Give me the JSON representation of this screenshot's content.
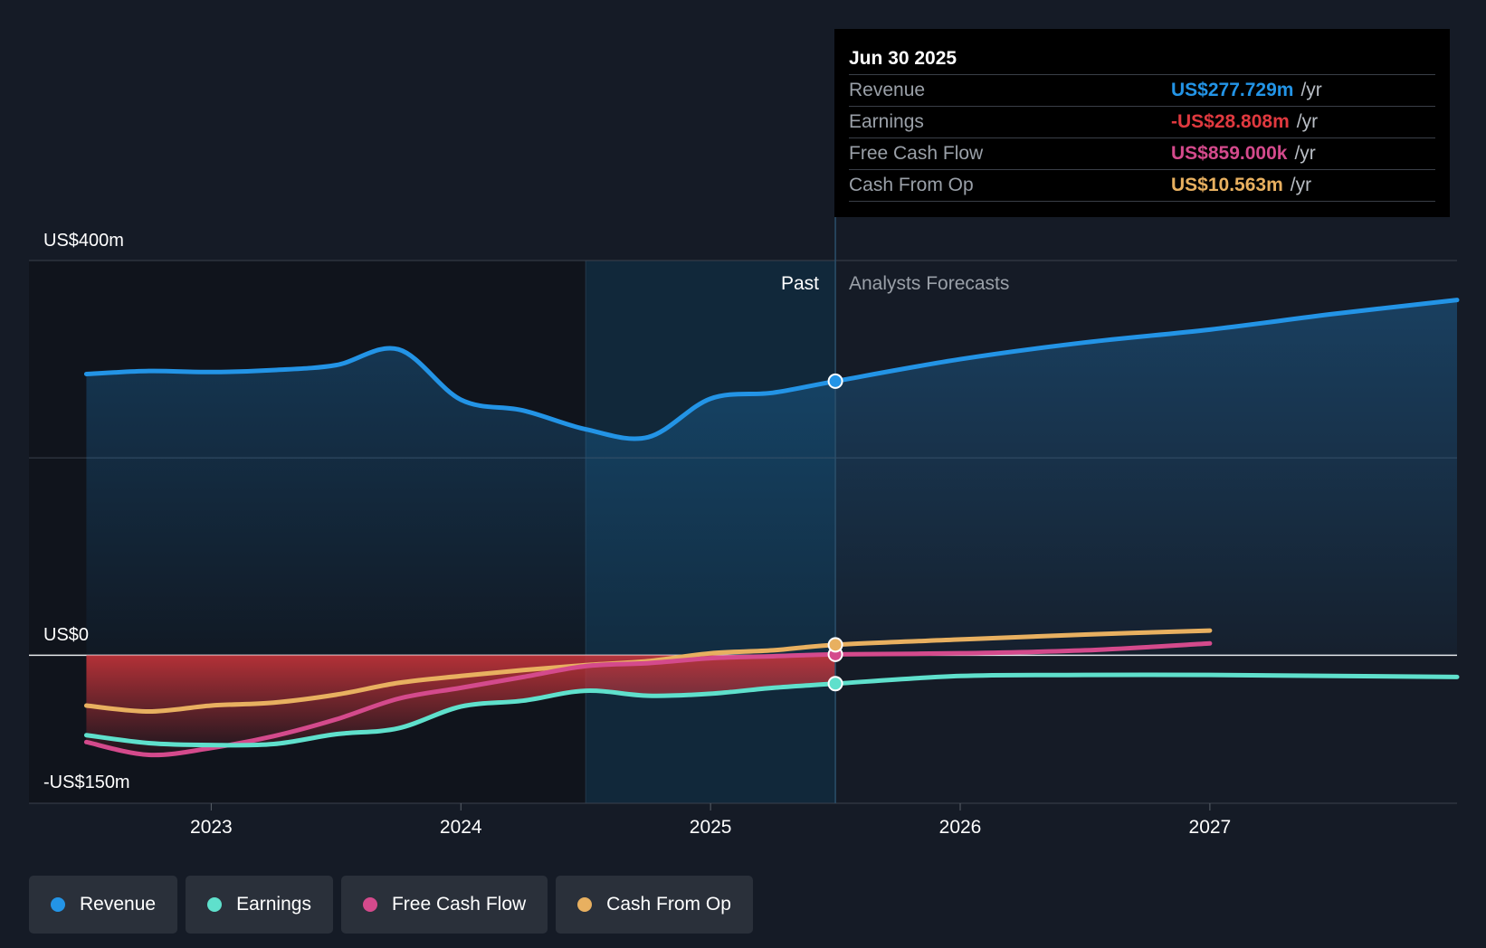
{
  "tooltip": {
    "date": "Jun 30 2025",
    "rows": [
      {
        "name": "Revenue",
        "value": "US$277.729m",
        "unit": "/yr",
        "color": "#2394e6"
      },
      {
        "name": "Earnings",
        "value": "-US$28.808m",
        "unit": "/yr",
        "color": "#e0393f"
      },
      {
        "name": "Free Cash Flow",
        "value": "US$859.000k",
        "unit": "/yr",
        "color": "#d44a8c"
      },
      {
        "name": "Cash From Op",
        "value": "US$10.563m",
        "unit": "/yr",
        "color": "#e8b060"
      }
    ]
  },
  "legend": [
    {
      "label": "Revenue",
      "color": "#2394e6"
    },
    {
      "label": "Earnings",
      "color": "#5fe0cc"
    },
    {
      "label": "Free Cash Flow",
      "color": "#d44a8c"
    },
    {
      "label": "Cash From Op",
      "color": "#e8b060"
    }
  ],
  "chart_data": {
    "type": "line",
    "title": "",
    "y_axis_labels": {
      "top": "US$400m",
      "zero": "US$0",
      "bottom": "-US$150m"
    },
    "ylim": [
      -150,
      400
    ],
    "xlim": [
      2022.27,
      2027.99
    ],
    "x_ticks": [
      {
        "value": 2023,
        "label": "2023"
      },
      {
        "value": 2024,
        "label": "2024"
      },
      {
        "value": 2025,
        "label": "2025"
      },
      {
        "value": 2026,
        "label": "2026"
      },
      {
        "value": 2027,
        "label": "2027"
      }
    ],
    "past_label": "Past",
    "forecast_label": "Analysts Forecasts",
    "highlight_start": 2024.5,
    "divider": 2025.5,
    "series": [
      {
        "name": "Revenue",
        "color": "#2394e6",
        "area": true,
        "x": [
          2022.5,
          2022.75,
          2023.0,
          2023.25,
          2023.5,
          2023.75,
          2024.0,
          2024.25,
          2024.5,
          2024.75,
          2025.0,
          2025.25,
          2025.5,
          2026.0,
          2026.5,
          2027.0,
          2027.5,
          2027.99
        ],
        "y": [
          285,
          288,
          287,
          289,
          294,
          310,
          259,
          248,
          229,
          221,
          260,
          266,
          277.7,
          300,
          317,
          330,
          346,
          360
        ]
      },
      {
        "name": "Earnings",
        "color": "#5fe0cc",
        "x": [
          2022.5,
          2022.75,
          2023.0,
          2023.25,
          2023.5,
          2023.75,
          2024.0,
          2024.25,
          2024.5,
          2024.75,
          2025.0,
          2025.25,
          2025.5,
          2026.0,
          2026.5,
          2027.0,
          2027.5,
          2027.99
        ],
        "y": [
          -81,
          -89,
          -91,
          -90,
          -80,
          -74,
          -52,
          -46,
          -36,
          -41,
          -39,
          -33,
          -28.8,
          -21,
          -20,
          -20,
          -21,
          -22
        ]
      },
      {
        "name": "Free Cash Flow",
        "color": "#d44a8c",
        "x": [
          2022.5,
          2022.75,
          2023.0,
          2023.25,
          2023.5,
          2023.75,
          2024.0,
          2024.25,
          2024.5,
          2024.75,
          2025.0,
          2025.25,
          2025.5,
          2026.0,
          2026.5,
          2027.0
        ],
        "y": [
          -88,
          -101,
          -94,
          -82,
          -65,
          -44,
          -33,
          -22,
          -11,
          -8,
          -3,
          -1,
          0.859,
          2,
          5,
          12
        ]
      },
      {
        "name": "Cash From Op",
        "color": "#e8b060",
        "x": [
          2022.5,
          2022.75,
          2023.0,
          2023.25,
          2023.5,
          2023.75,
          2024.0,
          2024.25,
          2024.5,
          2024.75,
          2025.0,
          2025.25,
          2025.5,
          2026.0,
          2026.5,
          2027.0
        ],
        "y": [
          -51,
          -57,
          -51,
          -48,
          -40,
          -28,
          -21,
          -15,
          -10,
          -6,
          2,
          5,
          10.563,
          16,
          21,
          25
        ]
      }
    ]
  }
}
